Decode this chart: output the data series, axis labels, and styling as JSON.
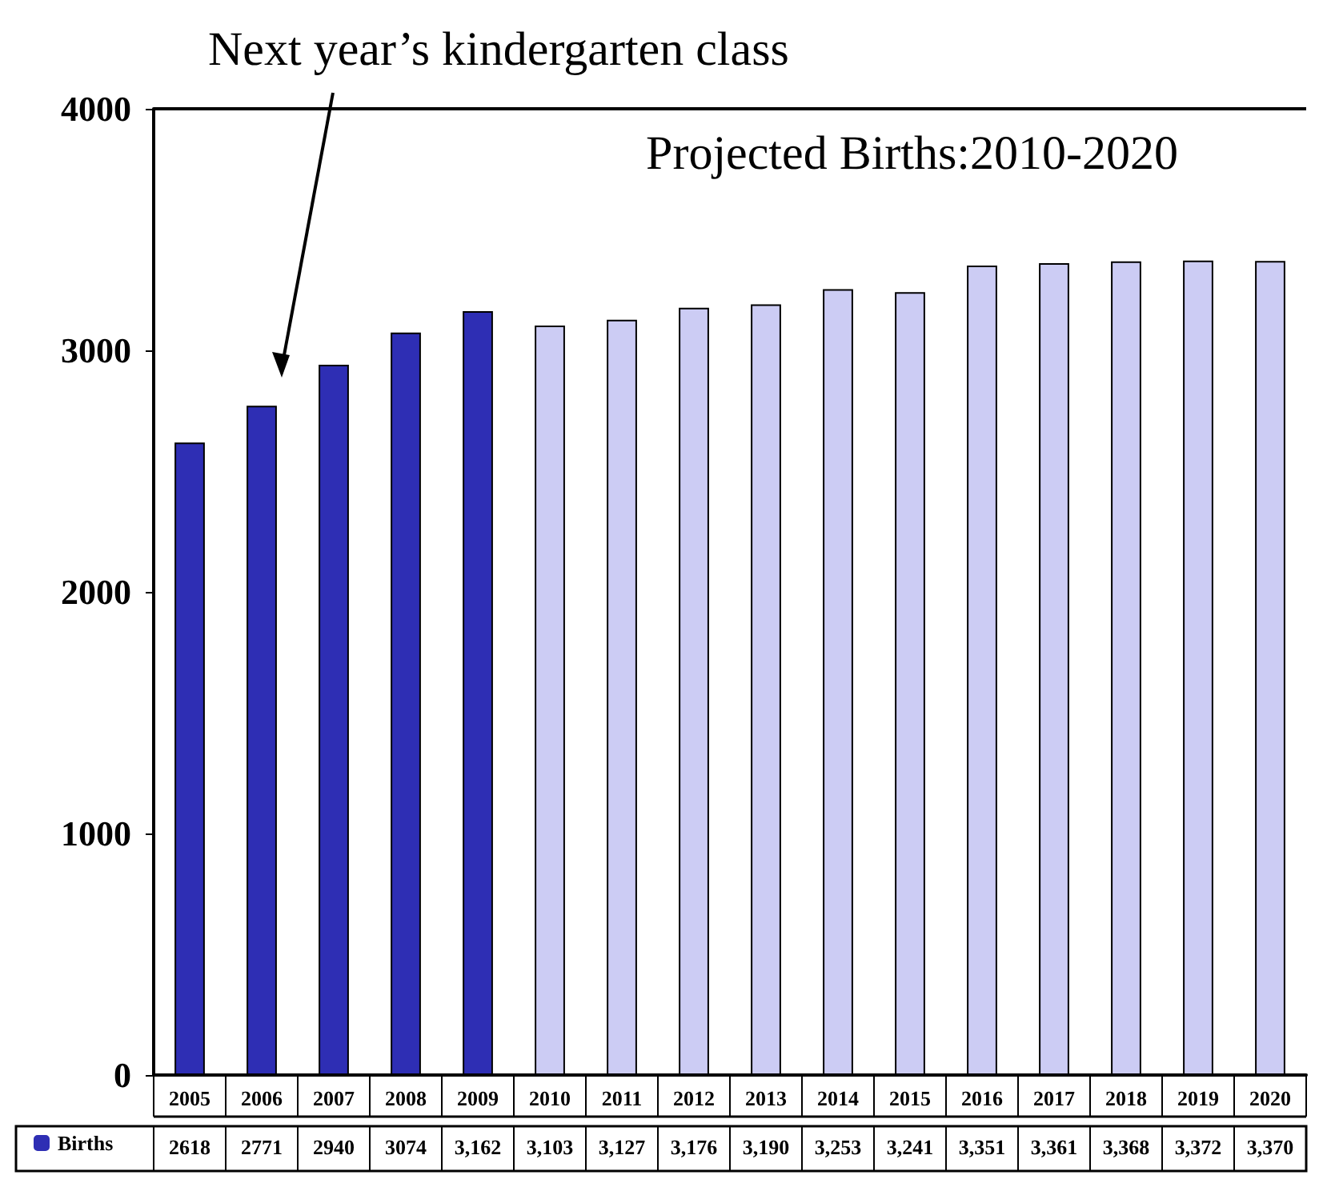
{
  "chart_data": {
    "type": "bar",
    "title": "Projected Births:2010-2020",
    "categories": [
      "2005",
      "2006",
      "2007",
      "2008",
      "2009",
      "2010",
      "2011",
      "2012",
      "2013",
      "2014",
      "2015",
      "2016",
      "2017",
      "2018",
      "2019",
      "2020"
    ],
    "series": [
      {
        "name": "Births",
        "colors": [
          "#2e2eb4",
          "#2e2eb4",
          "#2e2eb4",
          "#2e2eb4",
          "#2e2eb4",
          "#ccccf4",
          "#ccccf4",
          "#ccccf4",
          "#ccccf4",
          "#ccccf4",
          "#ccccf4",
          "#ccccf4",
          "#ccccf4",
          "#ccccf4",
          "#ccccf4",
          "#ccccf4"
        ],
        "values": [
          2618,
          2771,
          2940,
          3074,
          3162,
          3103,
          3127,
          3176,
          3190,
          3253,
          3241,
          3351,
          3361,
          3368,
          3372,
          3370
        ],
        "value_labels": [
          "2618",
          "2771",
          "2940",
          "3074",
          "3,162",
          "3,103",
          "3,127",
          "3,176",
          "3,190",
          "3,253",
          "3,241",
          "3,351",
          "3,361",
          "3,368",
          "3,372",
          "3,370"
        ]
      }
    ],
    "ylim": [
      0,
      4000
    ],
    "yticks": [
      0,
      1000,
      2000,
      3000,
      4000
    ],
    "grid": false,
    "legend": "bottom left",
    "annotations": [
      "Next year’s kindergarten class"
    ]
  }
}
